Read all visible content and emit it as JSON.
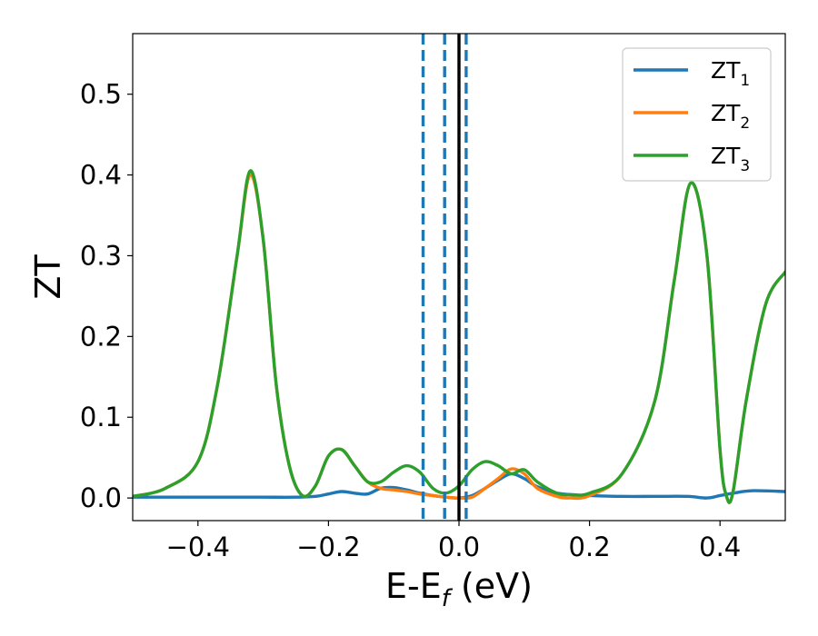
{
  "chart_data": {
    "type": "line",
    "xlabel": "E-E",
    "xlabel_sub": "f",
    "xlabel_unit": " (eV)",
    "ylabel": "ZT",
    "xlim": [
      -0.5,
      0.5
    ],
    "ylim": [
      -0.028,
      0.575
    ],
    "xticks": [
      -0.4,
      -0.2,
      0.0,
      0.2,
      0.4
    ],
    "xtick_labels": [
      "−0.4",
      "−0.2",
      "0.0",
      "0.2",
      "0.4"
    ],
    "yticks": [
      0.0,
      0.1,
      0.2,
      0.3,
      0.4,
      0.5
    ],
    "ytick_labels": [
      "0.0",
      "0.1",
      "0.2",
      "0.3",
      "0.4",
      "0.5"
    ],
    "grid": false,
    "legend_position": "top-right",
    "vertical_lines": [
      {
        "x": -0.055,
        "style": "dashed",
        "color": "#1f77b4"
      },
      {
        "x": -0.022,
        "style": "dashed",
        "color": "#1f77b4"
      },
      {
        "x": 0.011,
        "style": "dashed",
        "color": "#1f77b4"
      },
      {
        "x": 0.0,
        "style": "solid",
        "color": "#000000"
      }
    ],
    "series": [
      {
        "name": "ZT",
        "name_sub": "1",
        "color": "#1f77b4",
        "x": [
          -0.5,
          -0.45,
          -0.4,
          -0.35,
          -0.3,
          -0.25,
          -0.22,
          -0.2,
          -0.18,
          -0.16,
          -0.14,
          -0.12,
          -0.1,
          -0.08,
          -0.06,
          -0.04,
          -0.02,
          0.0,
          0.02,
          0.04,
          0.06,
          0.08,
          0.1,
          0.12,
          0.15,
          0.2,
          0.25,
          0.3,
          0.35,
          0.38,
          0.4,
          0.42,
          0.45,
          0.5
        ],
        "y": [
          0.001,
          0.001,
          0.001,
          0.001,
          0.001,
          0.001,
          0.002,
          0.005,
          0.008,
          0.006,
          0.005,
          0.012,
          0.013,
          0.01,
          0.006,
          0.003,
          0.001,
          0.0,
          0.003,
          0.012,
          0.022,
          0.03,
          0.024,
          0.014,
          0.006,
          0.003,
          0.002,
          0.002,
          0.002,
          0.0,
          0.003,
          0.006,
          0.009,
          0.008
        ]
      },
      {
        "name": "ZT",
        "name_sub": "2",
        "color": "#ff7f0e",
        "x": [
          -0.5,
          -0.45,
          -0.4,
          -0.37,
          -0.34,
          -0.32,
          -0.3,
          -0.28,
          -0.26,
          -0.24,
          -0.22,
          -0.2,
          -0.18,
          -0.16,
          -0.14,
          -0.12,
          -0.1,
          -0.08,
          -0.06,
          -0.04,
          -0.02,
          0.0,
          0.02,
          0.04,
          0.06,
          0.08,
          0.1,
          0.12,
          0.15,
          0.17,
          0.2,
          0.25,
          0.3,
          0.33,
          0.355,
          0.38,
          0.4,
          0.41,
          0.42,
          0.44,
          0.47,
          0.5
        ],
        "y": [
          0.002,
          0.012,
          0.045,
          0.14,
          0.3,
          0.4,
          0.32,
          0.14,
          0.04,
          0.003,
          0.015,
          0.052,
          0.06,
          0.04,
          0.02,
          0.012,
          0.01,
          0.008,
          0.005,
          0.003,
          0.001,
          0.0,
          0.001,
          0.012,
          0.024,
          0.036,
          0.03,
          0.012,
          0.002,
          0.0,
          0.003,
          0.03,
          0.12,
          0.27,
          0.39,
          0.3,
          0.06,
          0.002,
          0.008,
          0.12,
          0.24,
          0.28
        ]
      },
      {
        "name": "ZT",
        "name_sub": "3",
        "color": "#2ca02c",
        "x": [
          -0.5,
          -0.45,
          -0.4,
          -0.37,
          -0.34,
          -0.32,
          -0.3,
          -0.28,
          -0.26,
          -0.24,
          -0.22,
          -0.2,
          -0.18,
          -0.16,
          -0.14,
          -0.12,
          -0.1,
          -0.08,
          -0.06,
          -0.04,
          -0.02,
          0.0,
          0.02,
          0.04,
          0.06,
          0.08,
          0.1,
          0.12,
          0.15,
          0.17,
          0.2,
          0.25,
          0.3,
          0.33,
          0.355,
          0.38,
          0.4,
          0.41,
          0.42,
          0.44,
          0.47,
          0.5
        ],
        "y": [
          0.002,
          0.012,
          0.045,
          0.14,
          0.3,
          0.405,
          0.32,
          0.14,
          0.04,
          0.003,
          0.015,
          0.052,
          0.06,
          0.04,
          0.02,
          0.02,
          0.032,
          0.04,
          0.032,
          0.012,
          0.006,
          0.015,
          0.035,
          0.045,
          0.04,
          0.03,
          0.035,
          0.02,
          0.006,
          0.004,
          0.006,
          0.03,
          0.12,
          0.27,
          0.39,
          0.3,
          0.06,
          0.002,
          0.008,
          0.12,
          0.24,
          0.28
        ]
      }
    ]
  }
}
